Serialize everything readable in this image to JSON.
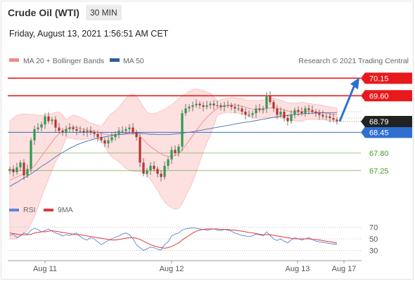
{
  "header": {
    "title": "Crude Oil (WTI)",
    "timeframe": "30 MIN",
    "datetime": "Friday, August 13, 2021 1:56:51 AM CET"
  },
  "legend": {
    "ma20": "MA 20 + Bollinger Bands",
    "ma50": "MA 50",
    "rsi": "RSI",
    "ma9": "9MA",
    "credit": "Research © 2021 Trading Central"
  },
  "colors": {
    "resistance": "#e8191c",
    "support": "#2f6fcf",
    "target": "#4e9a2c",
    "candle_up": "#2f9a52",
    "candle_down": "#b7352f",
    "bollinger_fill": "#fde0e0",
    "ma20": "#f08a8a",
    "ma50": "#4a6fae",
    "rsi": "#5a86d6",
    "rsi_ma": "#e03a3a",
    "arrow": "#2f6fcf",
    "current": "#222222"
  },
  "chart_data": [
    {
      "type": "candlestick",
      "ylim": [
        66.65,
        70.4
      ],
      "x_labels": [
        "Aug 11",
        "Aug 12",
        "Aug 13",
        "Aug 17"
      ],
      "current_price": "68.79",
      "levels": [
        {
          "label": "70.15",
          "value": 70.15,
          "kind": "resistance"
        },
        {
          "label": "69.60",
          "value": 69.6,
          "kind": "resistance"
        },
        {
          "label": "68.45",
          "value": 68.45,
          "kind": "support"
        },
        {
          "label": "67.80",
          "value": 67.8,
          "kind": "target"
        },
        {
          "label": "67.25",
          "value": 67.25,
          "kind": "target"
        }
      ],
      "forecast_arrow": {
        "from": 68.8,
        "to": 70.15
      },
      "closes": [
        67.3,
        67.2,
        67.35,
        67.5,
        67.1,
        67.3,
        68.2,
        68.55,
        68.6,
        68.7,
        68.95,
        68.8,
        68.85,
        68.6,
        68.5,
        68.45,
        68.55,
        68.6,
        68.55,
        68.5,
        68.5,
        68.45,
        68.5,
        68.45,
        68.4,
        68.3,
        68.2,
        68.1,
        68.2,
        68.3,
        68.4,
        68.5,
        68.5,
        68.55,
        68.6,
        68.45,
        68.3,
        67.5,
        67.15,
        67.25,
        67.4,
        67.3,
        67.15,
        67.05,
        67.4,
        67.6,
        67.9,
        67.8,
        68.0,
        69.05,
        69.2,
        69.25,
        69.3,
        69.35,
        69.3,
        69.25,
        69.3,
        69.35,
        69.3,
        69.3,
        69.25,
        69.3,
        69.3,
        69.25,
        69.2,
        69.2,
        69.1,
        69.0,
        69.0,
        69.05,
        69.2,
        69.15,
        69.2,
        69.6,
        69.4,
        69.2,
        69.0,
        69.1,
        68.9,
        68.8,
        69.0,
        69.15,
        69.1,
        69.05,
        69.2,
        69.15,
        69.1,
        69.05,
        69.0,
        68.95,
        68.95,
        68.9,
        68.85,
        68.8
      ],
      "ma20": [
        66.95,
        67.0,
        67.05,
        67.1,
        67.15,
        67.2,
        67.3,
        67.4,
        67.55,
        67.7,
        67.85,
        68.0,
        68.15,
        68.3,
        68.4,
        68.5,
        68.55,
        68.6,
        68.62,
        68.6,
        68.57,
        68.55,
        68.52,
        68.5,
        68.48,
        68.45,
        68.42,
        68.4,
        68.38,
        68.37,
        68.37,
        68.38,
        68.4,
        68.42,
        68.44,
        68.44,
        68.4,
        68.32,
        68.22,
        68.1,
        68.0,
        67.92,
        67.85,
        67.78,
        67.72,
        67.7,
        67.7,
        67.72,
        67.78,
        67.9,
        68.05,
        68.2,
        68.35,
        68.5,
        68.65,
        68.8,
        68.92,
        69.02,
        69.12,
        69.2,
        69.25,
        69.28,
        69.3,
        69.31,
        69.3,
        69.29,
        69.27,
        69.24,
        69.2,
        69.18,
        69.17,
        69.17,
        69.18,
        69.2,
        69.22,
        69.22,
        69.2,
        69.18,
        69.15,
        69.12,
        69.1,
        69.09,
        69.09,
        69.1,
        69.11,
        69.11,
        69.1,
        69.09,
        69.08,
        69.07,
        69.05,
        69.03,
        69.01,
        69.0
      ],
      "ma50": [
        66.75,
        66.82,
        66.88,
        66.95,
        67.02,
        67.08,
        67.15,
        67.22,
        67.3,
        67.38,
        67.45,
        67.52,
        67.6,
        67.68,
        67.75,
        67.82,
        67.88,
        67.95,
        68.0,
        68.06,
        68.1,
        68.14,
        68.18,
        68.21,
        68.24,
        68.27,
        68.29,
        68.31,
        68.33,
        68.35,
        68.37,
        68.38,
        68.39,
        68.4,
        68.41,
        68.42,
        68.42,
        68.42,
        68.41,
        68.4,
        68.39,
        68.39,
        68.38,
        68.38,
        68.38,
        68.38,
        68.39,
        68.4,
        68.41,
        68.42,
        68.44,
        68.45,
        68.47,
        68.49,
        68.51,
        68.53,
        68.55,
        68.57,
        68.59,
        68.61,
        68.63,
        68.65,
        68.67,
        68.69,
        68.71,
        68.73,
        68.75,
        68.77,
        68.78,
        68.8,
        68.82,
        68.84,
        68.86,
        68.88,
        68.9,
        68.92,
        68.94,
        68.96,
        68.97,
        68.98,
        69.0,
        69.01,
        69.02,
        69.03,
        69.04,
        69.05,
        69.05,
        69.06,
        69.06,
        69.07,
        69.07,
        69.07,
        69.07,
        69.07
      ]
    },
    {
      "type": "line",
      "ylim": [
        20,
        80
      ],
      "y_ticks": [
        70,
        50,
        30
      ],
      "rsi": [
        56,
        58,
        52,
        55,
        60,
        58,
        65,
        68,
        66,
        62,
        64,
        67,
        63,
        60,
        58,
        55,
        57,
        56,
        58,
        60,
        54,
        50,
        48,
        52,
        50,
        45,
        40,
        44,
        47,
        50,
        53,
        55,
        58,
        60,
        57,
        50,
        40,
        35,
        30,
        33,
        36,
        35,
        32,
        31,
        40,
        45,
        55,
        58,
        60,
        65,
        67,
        68,
        69,
        68,
        67,
        66,
        65,
        66,
        67,
        65,
        64,
        66,
        65,
        63,
        60,
        58,
        56,
        55,
        54,
        55,
        58,
        57,
        55,
        62,
        56,
        50,
        47,
        50,
        46,
        43,
        48,
        52,
        50,
        48,
        50,
        52,
        49,
        46,
        45,
        44,
        43,
        42,
        41,
        41
      ],
      "ma9": [
        60,
        59,
        58,
        57,
        57,
        57,
        58,
        60,
        61,
        62,
        62,
        63,
        64,
        63,
        62,
        61,
        60,
        59,
        58,
        57,
        57,
        56,
        55,
        54,
        53,
        52,
        51,
        50,
        49,
        48,
        48,
        49,
        50,
        51,
        52,
        52,
        51,
        49,
        46,
        43,
        40,
        38,
        36,
        35,
        34,
        35,
        37,
        40,
        43,
        48,
        52,
        56,
        60,
        63,
        65,
        66,
        67,
        67,
        67,
        67,
        66,
        66,
        66,
        65,
        65,
        64,
        63,
        62,
        61,
        60,
        59,
        58,
        57,
        57,
        57,
        56,
        55,
        54,
        53,
        52,
        51,
        50,
        50,
        50,
        50,
        50,
        49,
        49,
        48,
        47,
        46,
        45,
        44,
        43
      ]
    }
  ]
}
